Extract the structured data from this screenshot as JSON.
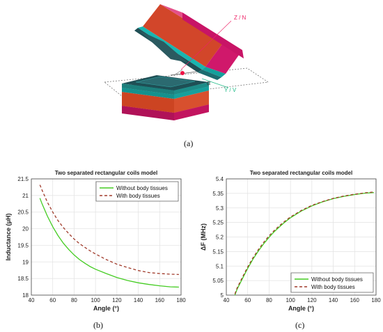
{
  "colors": {
    "without": "#44cc22",
    "with": "#a03a2a",
    "grid": "#e2e2e2",
    "coil_magenta": "#d0186b",
    "coil_orange": "#d2462a",
    "coil_cyan": "#19b5b0",
    "coil_dark": "#1f4f55",
    "axis_label_red": "#ee2266",
    "axis_label_green": "#22bb88"
  },
  "figure_a": {
    "label": "(a)",
    "axis_labels": {
      "z": "Z / N",
      "y": "Y / V",
      "alpha": "α"
    }
  },
  "chart_data": [
    {
      "type": "line",
      "panel_label": "(b)",
      "title": "Two separated rectangular coils model",
      "xlabel": "Angle (°)",
      "ylabel": "Inductance (μH)",
      "xlim": [
        40,
        180
      ],
      "ylim": [
        18,
        21.5
      ],
      "xticks": [
        "40",
        "60",
        "80",
        "100",
        "120",
        "140",
        "160",
        "180"
      ],
      "yticks": [
        "18",
        "18.5",
        "19",
        "19.5",
        "20",
        "20.5",
        "21",
        "21.5"
      ],
      "grid": true,
      "legend_position": "top-right",
      "x": [
        48,
        50,
        55,
        60,
        65,
        70,
        75,
        80,
        85,
        90,
        95,
        100,
        110,
        120,
        130,
        140,
        150,
        160,
        170,
        178
      ],
      "series": [
        {
          "name": "Without body tissues",
          "style": "solid",
          "values": [
            20.92,
            20.75,
            20.38,
            20.06,
            19.79,
            19.56,
            19.37,
            19.21,
            19.07,
            18.96,
            18.86,
            18.78,
            18.65,
            18.53,
            18.44,
            18.37,
            18.32,
            18.28,
            18.25,
            18.24
          ]
        },
        {
          "name": "With body tissues",
          "style": "dashed",
          "values": [
            21.32,
            21.16,
            20.8,
            20.5,
            20.24,
            20.03,
            19.85,
            19.69,
            19.55,
            19.44,
            19.33,
            19.24,
            19.07,
            18.93,
            18.83,
            18.74,
            18.68,
            18.65,
            18.63,
            18.62
          ]
        }
      ]
    },
    {
      "type": "line",
      "panel_label": "(c)",
      "title": "Two separated rectangular coils model",
      "xlabel": "Angle (°)",
      "ylabel": "ΔF (MHz)",
      "xlim": [
        40,
        180
      ],
      "ylim": [
        5,
        5.4
      ],
      "xticks": [
        "40",
        "60",
        "80",
        "100",
        "120",
        "140",
        "160",
        "180"
      ],
      "yticks": [
        "5",
        "5.05",
        "5.1",
        "5.15",
        "5.2",
        "5.25",
        "5.3",
        "5.35",
        "5.4"
      ],
      "grid": true,
      "legend_position": "bottom-right",
      "x": [
        48,
        50,
        55,
        60,
        65,
        70,
        75,
        80,
        85,
        90,
        95,
        100,
        110,
        120,
        130,
        140,
        150,
        160,
        170,
        178
      ],
      "series": [
        {
          "name": "Without body tissues",
          "style": "solid",
          "values": [
            5.0,
            5.02,
            5.056,
            5.092,
            5.124,
            5.152,
            5.177,
            5.199,
            5.219,
            5.236,
            5.252,
            5.266,
            5.289,
            5.307,
            5.321,
            5.332,
            5.34,
            5.346,
            5.351,
            5.353
          ]
        },
        {
          "name": "With body tissues",
          "style": "dashed",
          "values": [
            5.004,
            5.024,
            5.061,
            5.097,
            5.129,
            5.157,
            5.182,
            5.204,
            5.223,
            5.24,
            5.255,
            5.269,
            5.291,
            5.309,
            5.322,
            5.333,
            5.341,
            5.347,
            5.352,
            5.355
          ]
        }
      ]
    }
  ]
}
